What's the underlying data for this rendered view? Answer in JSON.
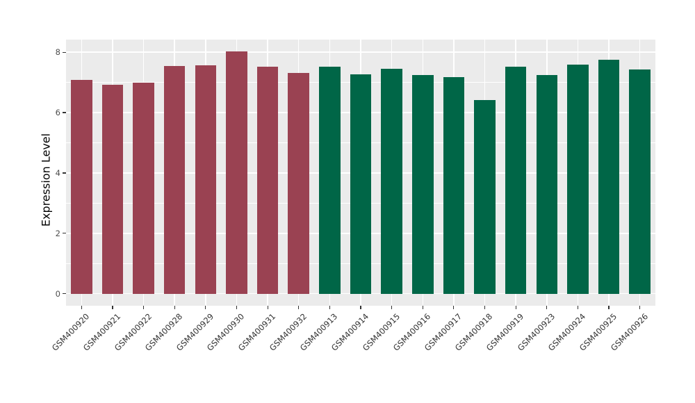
{
  "chart_data": {
    "type": "bar",
    "title": "",
    "xlabel": "",
    "ylabel": "Expression Level",
    "categories": [
      "GSM400920",
      "GSM400921",
      "GSM400922",
      "GSM400928",
      "GSM400929",
      "GSM400930",
      "GSM400931",
      "GSM400932",
      "GSM400913",
      "GSM400914",
      "GSM400915",
      "GSM400916",
      "GSM400917",
      "GSM400918",
      "GSM400919",
      "GSM400923",
      "GSM400924",
      "GSM400925",
      "GSM400926"
    ],
    "values": [
      7.08,
      6.92,
      7.0,
      7.54,
      7.57,
      8.02,
      7.53,
      7.31,
      7.52,
      7.28,
      7.46,
      7.24,
      7.17,
      6.41,
      7.52,
      7.24,
      7.58,
      7.76,
      7.43
    ],
    "bar_groups": [
      "g1",
      "g1",
      "g1",
      "g1",
      "g1",
      "g1",
      "g1",
      "g1",
      "g2",
      "g2",
      "g2",
      "g2",
      "g2",
      "g2",
      "g2",
      "g2",
      "g2",
      "g2",
      "g2"
    ],
    "group_colors": {
      "g1": "#9a4252",
      "g2": "#006647"
    },
    "yticks": [
      0,
      2,
      4,
      6,
      8
    ],
    "minor_yticks": [
      1,
      3,
      5,
      7
    ],
    "ylim": [
      -0.4,
      8.42
    ],
    "panel_background": "#ebebeb",
    "grid_color": "#ffffff",
    "tick_color": "#333333",
    "tick_label_color": "#4d4d4d",
    "legend": null,
    "grid": "major and minor horizontal white lines, vertical white line per category"
  }
}
